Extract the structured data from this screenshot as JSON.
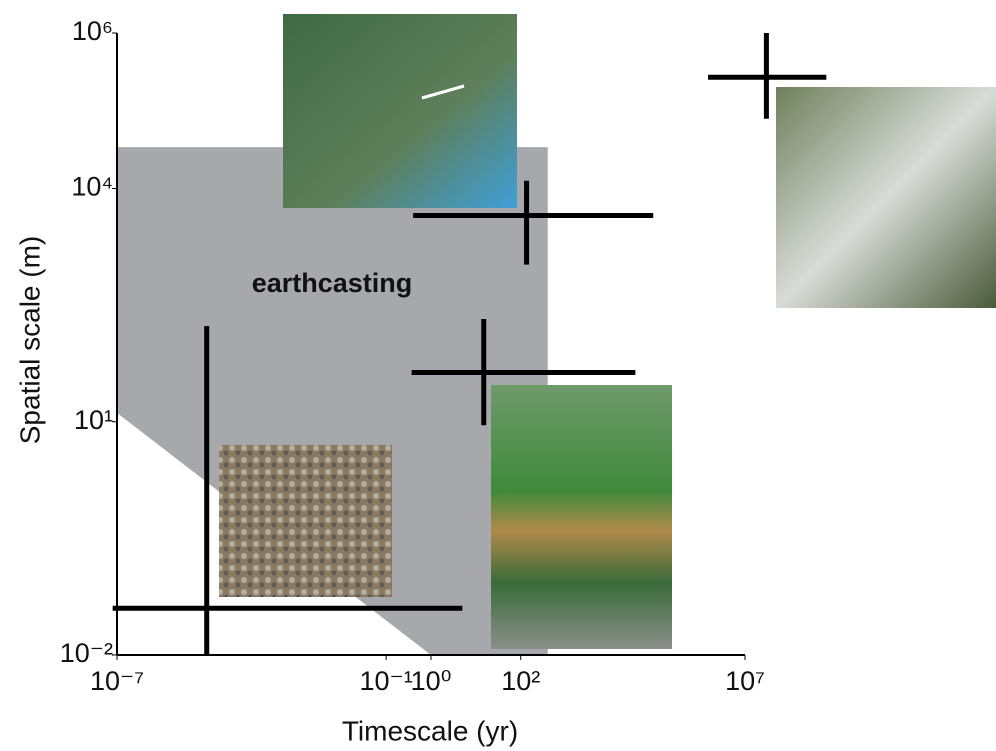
{
  "chart_data": {
    "type": "cross",
    "x_label": "Timescale (yr)",
    "y_label": "Spatial scale (m)",
    "log_x": true,
    "log_y": true,
    "xlim": [
      1e-07,
      10000000.0
    ],
    "ylim": [
      0.01,
      1000000
    ],
    "xticks": [
      {
        "value": 1e-07,
        "label": "10⁻⁷"
      },
      {
        "value": 0.1,
        "label": "10⁻¹"
      },
      {
        "value": 1,
        "label": "10⁰"
      },
      {
        "value": 100,
        "label": "10²"
      },
      {
        "value": 10000000,
        "label": "10⁷"
      }
    ],
    "yticks": [
      {
        "value": 0.01,
        "label": "10⁻²"
      },
      {
        "value": 10,
        "label": "10¹"
      },
      {
        "value": 10000,
        "label": "10⁴"
      },
      {
        "value": 1000000,
        "label": "10⁶"
      }
    ],
    "region": {
      "label": "earthcasting",
      "color": "#a7a8ab",
      "x": [
        1e-07,
        400,
        400,
        1,
        1e-07
      ],
      "y": [
        34000,
        34000,
        0.01,
        0.01,
        13
      ]
    },
    "color": "#000000",
    "crosses": [
      {
        "x": 1e-05,
        "y": 0.04,
        "xrange": [
          8e-08,
          5
        ],
        "yrange": [
          0.01,
          170
        ]
      },
      {
        "x": 15,
        "y": 43,
        "xrange": [
          0.37,
          36000
        ],
        "yrange": [
          9,
          210
        ]
      },
      {
        "x": 135,
        "y": 4500,
        "xrange": [
          0.4,
          90000
        ],
        "yrange": [
          1050,
          12600
        ]
      },
      {
        "x": 30000000,
        "y": 270000,
        "xrange": [
          1500000,
          650000000
        ],
        "yrange": [
          79000,
          1000000
        ]
      }
    ]
  }
}
